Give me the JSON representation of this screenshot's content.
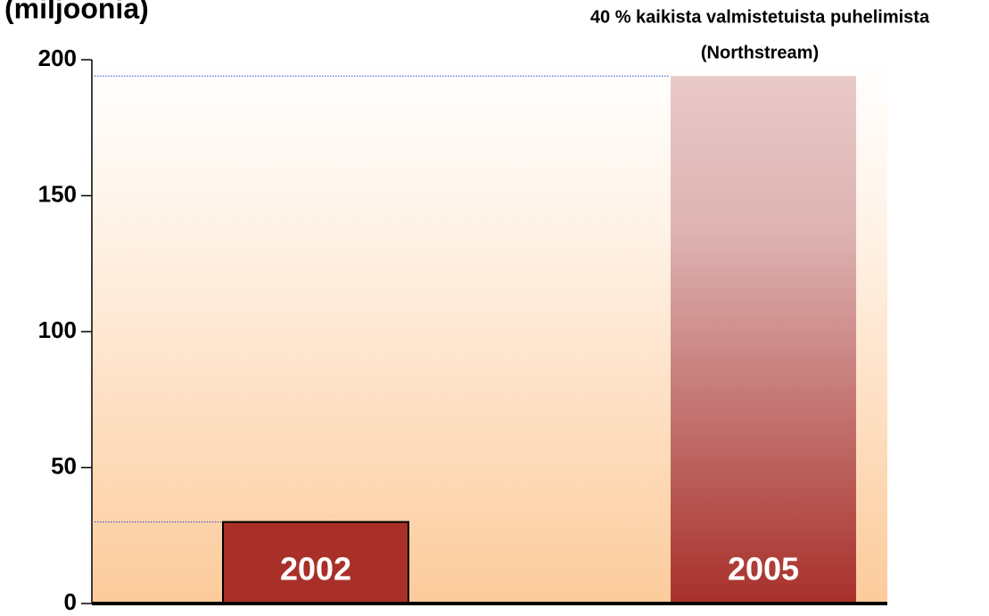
{
  "chart_data": {
    "type": "bar",
    "title": "(miljoonia)",
    "annotation": [
      "40 % kaikista valmistetuista puhelimista",
      "(Northstream)"
    ],
    "categories": [
      "2002",
      "2005"
    ],
    "values": [
      30,
      194
    ],
    "colors": [
      "#a93028",
      "#a8302a"
    ],
    "ylim": [
      0,
      200
    ],
    "yticks": [
      0,
      50,
      100,
      150,
      200
    ],
    "grid": false
  }
}
